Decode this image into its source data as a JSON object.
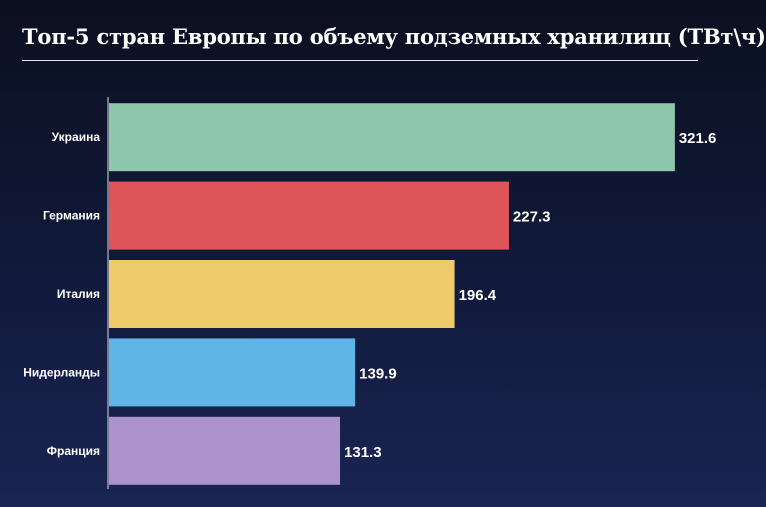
{
  "chart_data": {
    "type": "bar",
    "orientation": "horizontal",
    "title": "Топ-5 стран Европы по объему подземных хранилищ (ТВт\\ч)",
    "categories": [
      "Украина",
      "Германия",
      "Италия",
      "Нидерланды",
      "Франция"
    ],
    "values": [
      321.6,
      227.3,
      196.4,
      139.9,
      131.3
    ],
    "colors": [
      "#8ec7ab",
      "#de5559",
      "#f0cb6b",
      "#5fb6e6",
      "#ad93cb"
    ],
    "xlim": [
      0,
      340
    ],
    "grid": false,
    "legend": "none"
  }
}
